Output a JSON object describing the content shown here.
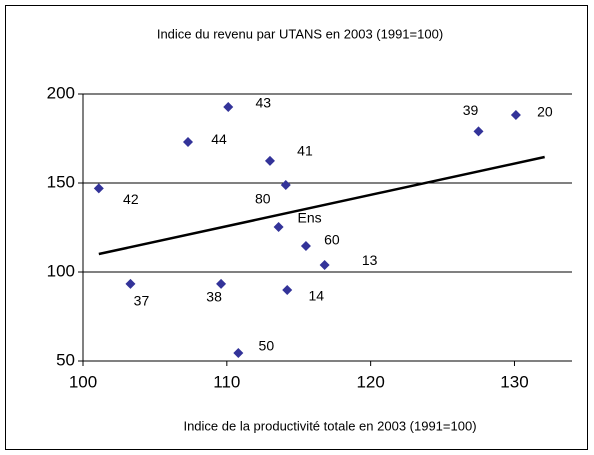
{
  "chart_data": {
    "type": "scatter",
    "title": "Indice du revenu par UTANS  en 2003 (1991=100)",
    "x_label": "Indice de la productivité totale en 2003 (1991=100)",
    "labels": [
      "20",
      "39",
      "43",
      "44",
      "41",
      "42",
      "80",
      "Ens",
      "60",
      "13",
      "37",
      "38",
      "14",
      "50"
    ],
    "x": [
      130.1,
      127.5,
      110.1,
      107.3,
      113,
      101.1,
      114.1,
      113.6,
      115.5,
      116.8,
      103.3,
      109.6,
      114.2,
      110.8
    ],
    "y": [
      188.2,
      179,
      192.7,
      173,
      162.4,
      147,
      148.9,
      125.3,
      114.6,
      103.9,
      93.3,
      93.3,
      89.9,
      54.5
    ],
    "color": "#333399",
    "trendline": {
      "x": [
        101.1,
        132.1
      ],
      "y": [
        110.1,
        164.6
      ],
      "color": "#000000"
    },
    "xlim": [
      100,
      134
    ],
    "xticks": [
      100,
      110,
      120,
      130
    ],
    "ylim": [
      50,
      200
    ],
    "yticks": [
      50,
      100,
      150,
      200
    ],
    "grid": true
  }
}
